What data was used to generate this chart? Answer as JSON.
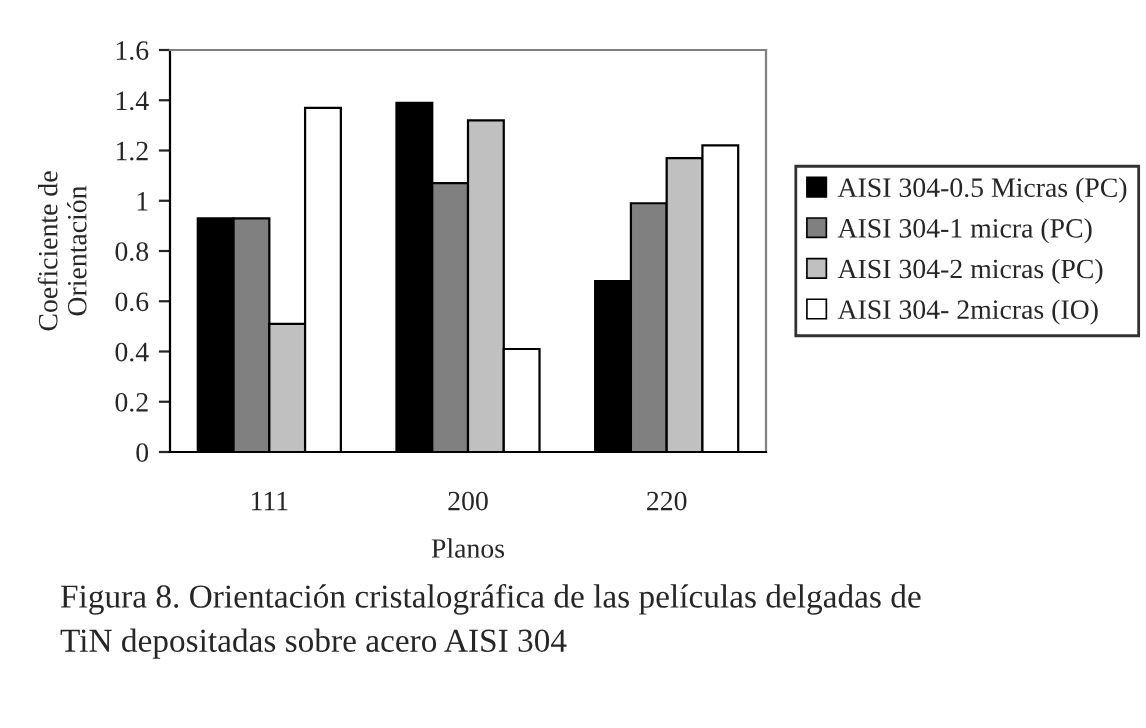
{
  "chart_data": {
    "type": "bar",
    "xlabel": "Planos",
    "ylabel": "Coeficiente de\nOrientación",
    "categories": [
      "111",
      "200",
      "220"
    ],
    "series": [
      {
        "name": "AISI 304-0.5 Micras (PC)",
        "color": "#000000",
        "values": [
          0.93,
          1.39,
          0.68
        ]
      },
      {
        "name": "AISI 304-1 micra (PC)",
        "color": "#808080",
        "values": [
          0.93,
          1.07,
          0.99
        ]
      },
      {
        "name": "AISI 304-2 micras (PC)",
        "color": "#c0c0c0",
        "values": [
          0.51,
          1.32,
          1.17
        ]
      },
      {
        "name": "AISI 304- 2micras (IO)",
        "color": "#ffffff",
        "values": [
          1.37,
          0.41,
          1.22
        ]
      }
    ],
    "ylim": [
      0,
      1.6
    ],
    "yticks": [
      0,
      0.2,
      0.4,
      0.6,
      0.8,
      1,
      1.2,
      1.4,
      1.6
    ],
    "grid": false,
    "legend": "right",
    "annotations": [
      "Figura 8. Orientación cristalográfica de las películas delgadas de\nTiN depositadas sobre acero AISI 304"
    ]
  }
}
